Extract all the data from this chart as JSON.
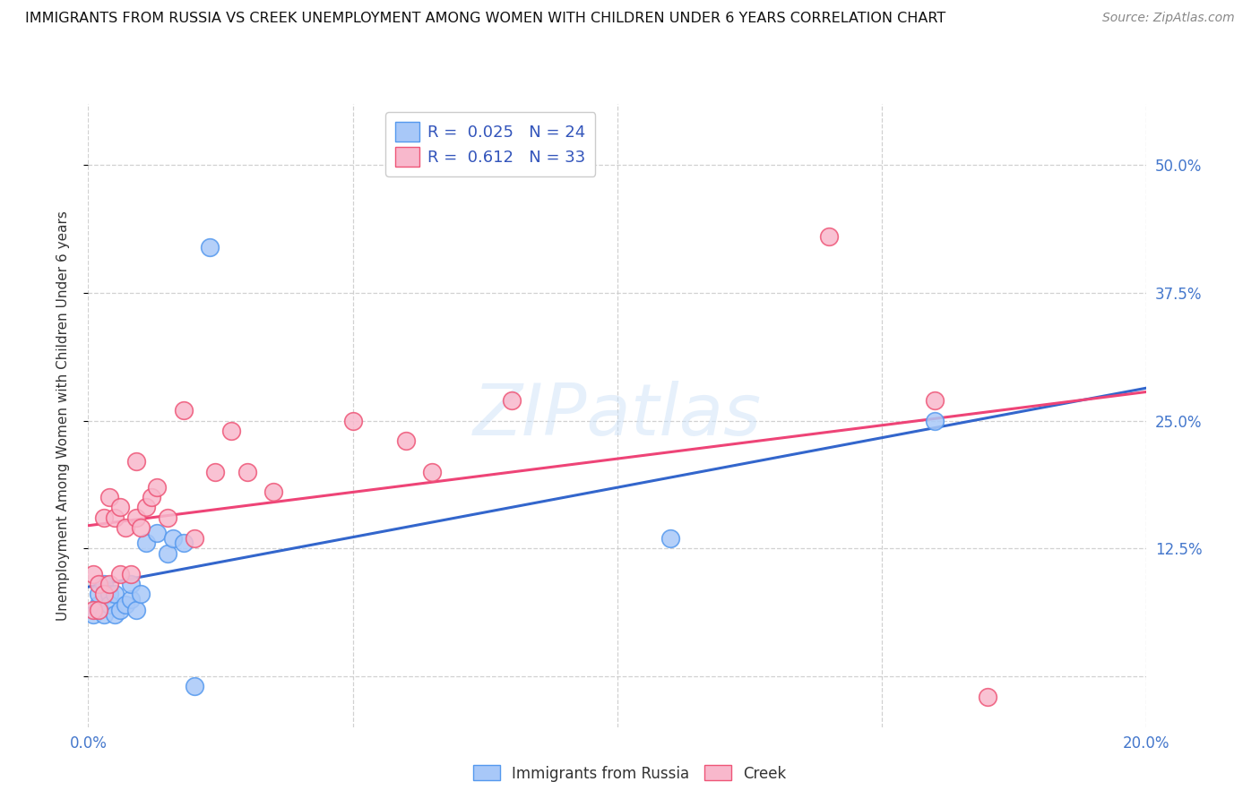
{
  "title": "IMMIGRANTS FROM RUSSIA VS CREEK UNEMPLOYMENT AMONG WOMEN WITH CHILDREN UNDER 6 YEARS CORRELATION CHART",
  "source": "Source: ZipAtlas.com",
  "ylabel": "Unemployment Among Women with Children Under 6 years",
  "xlim": [
    0.0,
    0.2
  ],
  "ylim": [
    -0.05,
    0.56
  ],
  "yticks": [
    0.0,
    0.125,
    0.25,
    0.375,
    0.5
  ],
  "ytick_labels": [
    "",
    "12.5%",
    "25.0%",
    "37.5%",
    "50.0%"
  ],
  "xticks": [
    0.0,
    0.05,
    0.1,
    0.15,
    0.2
  ],
  "xtick_labels": [
    "0.0%",
    "",
    "",
    "",
    "20.0%"
  ],
  "series1_color": "#a8c8f8",
  "series1_edge": "#5599ee",
  "series2_color": "#f8b8cc",
  "series2_edge": "#ee5577",
  "line1_color": "#3366cc",
  "line2_color": "#ee4477",
  "watermark": "ZIPatlas",
  "background_color": "#ffffff",
  "legend_label1": "R =  0.025   N = 24",
  "legend_label2": "R =  0.612   N = 33",
  "legend_text_color": "#3355bb",
  "bottom_legend_label1": "Immigrants from Russia",
  "bottom_legend_label2": "Creek",
  "scatter1_x": [
    0.001,
    0.002,
    0.002,
    0.003,
    0.003,
    0.004,
    0.004,
    0.005,
    0.005,
    0.006,
    0.007,
    0.008,
    0.008,
    0.009,
    0.01,
    0.011,
    0.013,
    0.015,
    0.016,
    0.018,
    0.02,
    0.023,
    0.11,
    0.16
  ],
  "scatter1_y": [
    0.06,
    0.07,
    0.08,
    0.06,
    0.09,
    0.08,
    0.07,
    0.06,
    0.08,
    0.065,
    0.07,
    0.075,
    0.09,
    0.065,
    0.08,
    0.13,
    0.14,
    0.12,
    0.135,
    0.13,
    -0.01,
    0.42,
    0.135,
    0.25
  ],
  "scatter2_x": [
    0.001,
    0.001,
    0.002,
    0.002,
    0.003,
    0.003,
    0.004,
    0.004,
    0.005,
    0.006,
    0.006,
    0.007,
    0.008,
    0.009,
    0.009,
    0.01,
    0.011,
    0.012,
    0.013,
    0.015,
    0.018,
    0.02,
    0.024,
    0.027,
    0.03,
    0.035,
    0.05,
    0.06,
    0.065,
    0.08,
    0.14,
    0.16,
    0.17
  ],
  "scatter2_y": [
    0.1,
    0.065,
    0.09,
    0.065,
    0.08,
    0.155,
    0.175,
    0.09,
    0.155,
    0.165,
    0.1,
    0.145,
    0.1,
    0.155,
    0.21,
    0.145,
    0.165,
    0.175,
    0.185,
    0.155,
    0.26,
    0.135,
    0.2,
    0.24,
    0.2,
    0.18,
    0.25,
    0.23,
    0.2,
    0.27,
    0.43,
    0.27,
    -0.02
  ]
}
